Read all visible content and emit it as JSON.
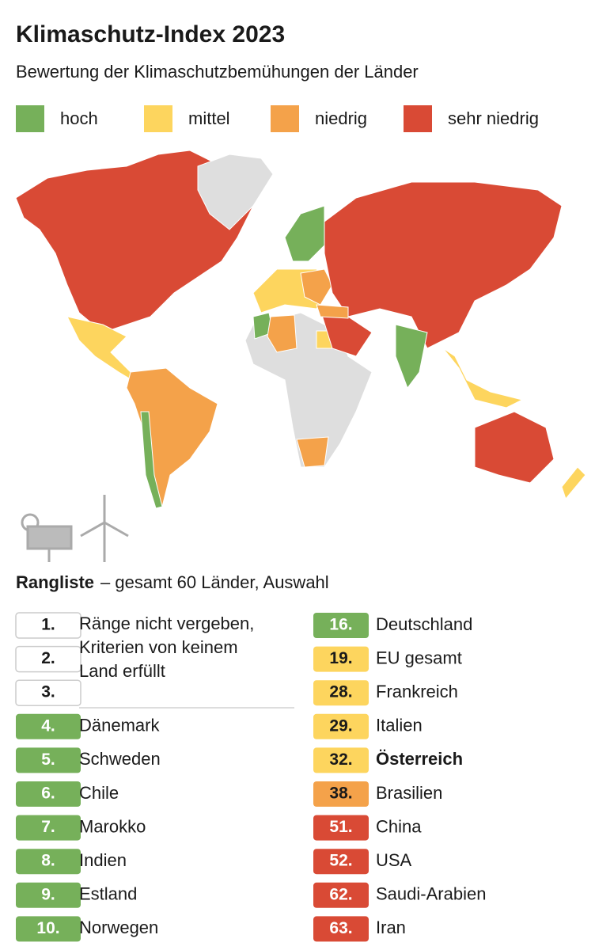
{
  "header": {
    "title": "Klimaschutz-Index 2023",
    "subtitle": "Bewertung der Klimaschutzbemühungen der Länder"
  },
  "legend": [
    {
      "label": "hoch",
      "color": "#76b05a"
    },
    {
      "label": "mittel",
      "color": "#fdd55e"
    },
    {
      "label": "niedrig",
      "color": "#f4a24a"
    },
    {
      "label": "sehr niedrig",
      "color": "#d94a35"
    }
  ],
  "ranking": {
    "title": "Rangliste",
    "subtitle": "– gesamt 60 Länder, Auswahl",
    "unranked": [
      "1.",
      "2.",
      "3."
    ],
    "note_lines": [
      "Ränge nicht vergeben,",
      "Kriterien von keinem",
      "Land erfüllt"
    ],
    "left": [
      {
        "rank": "4.",
        "name": "Dänemark",
        "level": 0
      },
      {
        "rank": "5.",
        "name": "Schweden",
        "level": 0
      },
      {
        "rank": "6.",
        "name": "Chile",
        "level": 0
      },
      {
        "rank": "7.",
        "name": "Marokko",
        "level": 0
      },
      {
        "rank": "8.",
        "name": "Indien",
        "level": 0
      },
      {
        "rank": "9.",
        "name": "Estland",
        "level": 0
      },
      {
        "rank": "10.",
        "name": "Norwegen",
        "level": 0
      }
    ],
    "right": [
      {
        "rank": "16.",
        "name": "Deutschland",
        "level": 0
      },
      {
        "rank": "19.",
        "name": "EU gesamt",
        "level": 1
      },
      {
        "rank": "28.",
        "name": "Frankreich",
        "level": 1
      },
      {
        "rank": "29.",
        "name": "Italien",
        "level": 1
      },
      {
        "rank": "32.",
        "name": "Österreich",
        "level": 1,
        "bold": true
      },
      {
        "rank": "38.",
        "name": "Brasilien",
        "level": 2
      },
      {
        "rank": "51.",
        "name": "China",
        "level": 3
      },
      {
        "rank": "52.",
        "name": "USA",
        "level": 3
      },
      {
        "rank": "62.",
        "name": "Saudi-Arabien",
        "level": 3
      },
      {
        "rank": "63.",
        "name": "Iran",
        "level": 3
      }
    ]
  }
}
